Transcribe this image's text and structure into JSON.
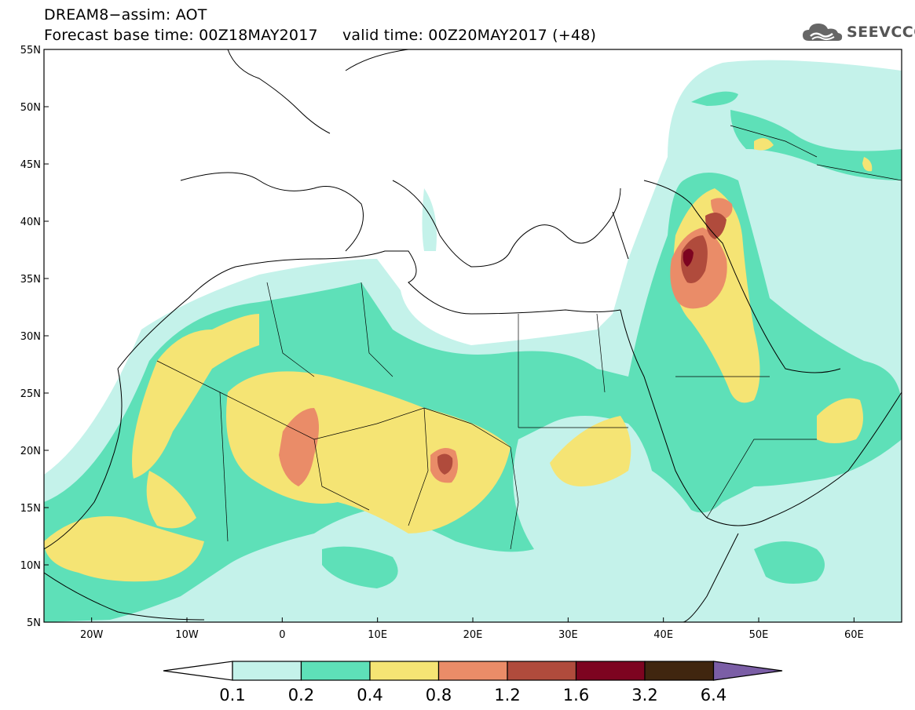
{
  "header": {
    "title_line1": "DREAM8−assim: AOT",
    "title_line2": "Forecast base time: 00Z18MAY2017     valid time: 00Z20MAY2017 (+48)"
  },
  "logo": {
    "text": "SEEVCCC",
    "icon": "cloud-icon"
  },
  "map": {
    "lat_labels": [
      "55N",
      "50N",
      "45N",
      "40N",
      "35N",
      "30N",
      "25N",
      "20N",
      "15N",
      "10N",
      "5N"
    ],
    "lon_labels": [
      "20W",
      "10W",
      "0",
      "10E",
      "20E",
      "30E",
      "40E",
      "50E",
      "60E"
    ],
    "lat_values": [
      55,
      50,
      45,
      40,
      35,
      30,
      25,
      20,
      15,
      10,
      5
    ],
    "lon_values": [
      -20,
      -10,
      0,
      10,
      20,
      30,
      40,
      50,
      60
    ],
    "lon_range": [
      -25,
      65
    ],
    "lat_range": [
      5,
      55
    ]
  },
  "legend": {
    "labels": [
      "0.1",
      "0.2",
      "0.4",
      "0.8",
      "1.2",
      "1.6",
      "3.2",
      "6.4"
    ],
    "colors": [
      "#ffffff",
      "#c4f2ea",
      "#5ee0b8",
      "#f5e474",
      "#ea8c68",
      "#b04b3c",
      "#7d0420",
      "#40260f",
      "#7b5ea6"
    ]
  }
}
